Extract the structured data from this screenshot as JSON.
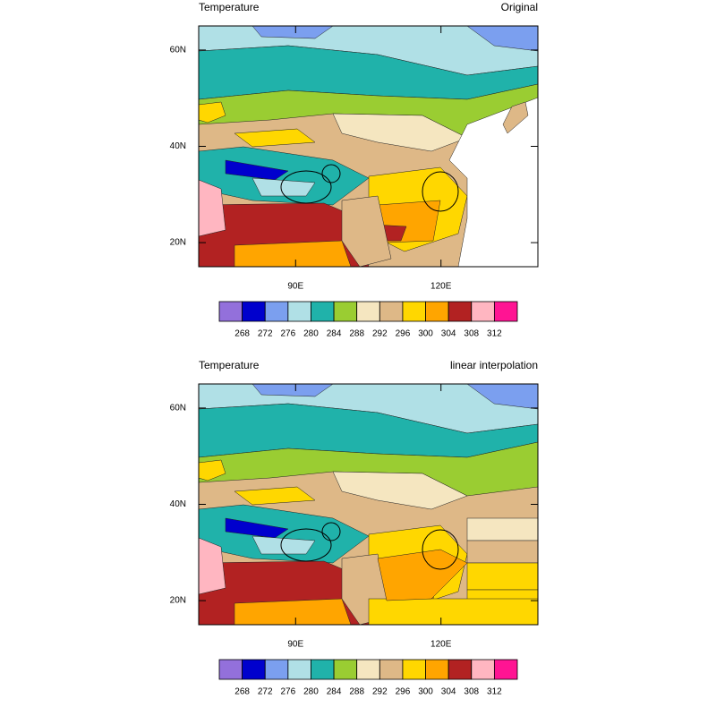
{
  "panels": [
    {
      "left_title": "Temperature",
      "right_title": "Original",
      "lonlim": [
        70,
        140
      ],
      "latlim": [
        15,
        65
      ],
      "lat_ticks": [
        {
          "value": 60,
          "label": "60N"
        },
        {
          "value": 40,
          "label": "40N"
        },
        {
          "value": 20,
          "label": "20N"
        }
      ],
      "lon_ticks": [
        {
          "value": 90,
          "label": "90E"
        },
        {
          "value": 120,
          "label": "120E"
        }
      ]
    },
    {
      "left_title": "Temperature",
      "right_title": "linear interpolation",
      "lonlim": [
        70,
        140
      ],
      "latlim": [
        15,
        65
      ],
      "lat_ticks": [
        {
          "value": 60,
          "label": "60N"
        },
        {
          "value": 40,
          "label": "40N"
        },
        {
          "value": 20,
          "label": "20N"
        }
      ],
      "lon_ticks": [
        {
          "value": 90,
          "label": "90E"
        },
        {
          "value": 120,
          "label": "120E"
        }
      ]
    }
  ],
  "colorbar": {
    "colors": [
      "#9370db",
      "#0000cd",
      "#7b9fef",
      "#b0e0e6",
      "#20b2aa",
      "#9acd32",
      "#f5e6c0",
      "#deb887",
      "#ffd700",
      "#ffa500",
      "#b22222",
      "#ffb6c1",
      "#ff1493"
    ],
    "levels": [
      268,
      272,
      276,
      280,
      284,
      288,
      292,
      296,
      300,
      304,
      308,
      312
    ]
  }
}
